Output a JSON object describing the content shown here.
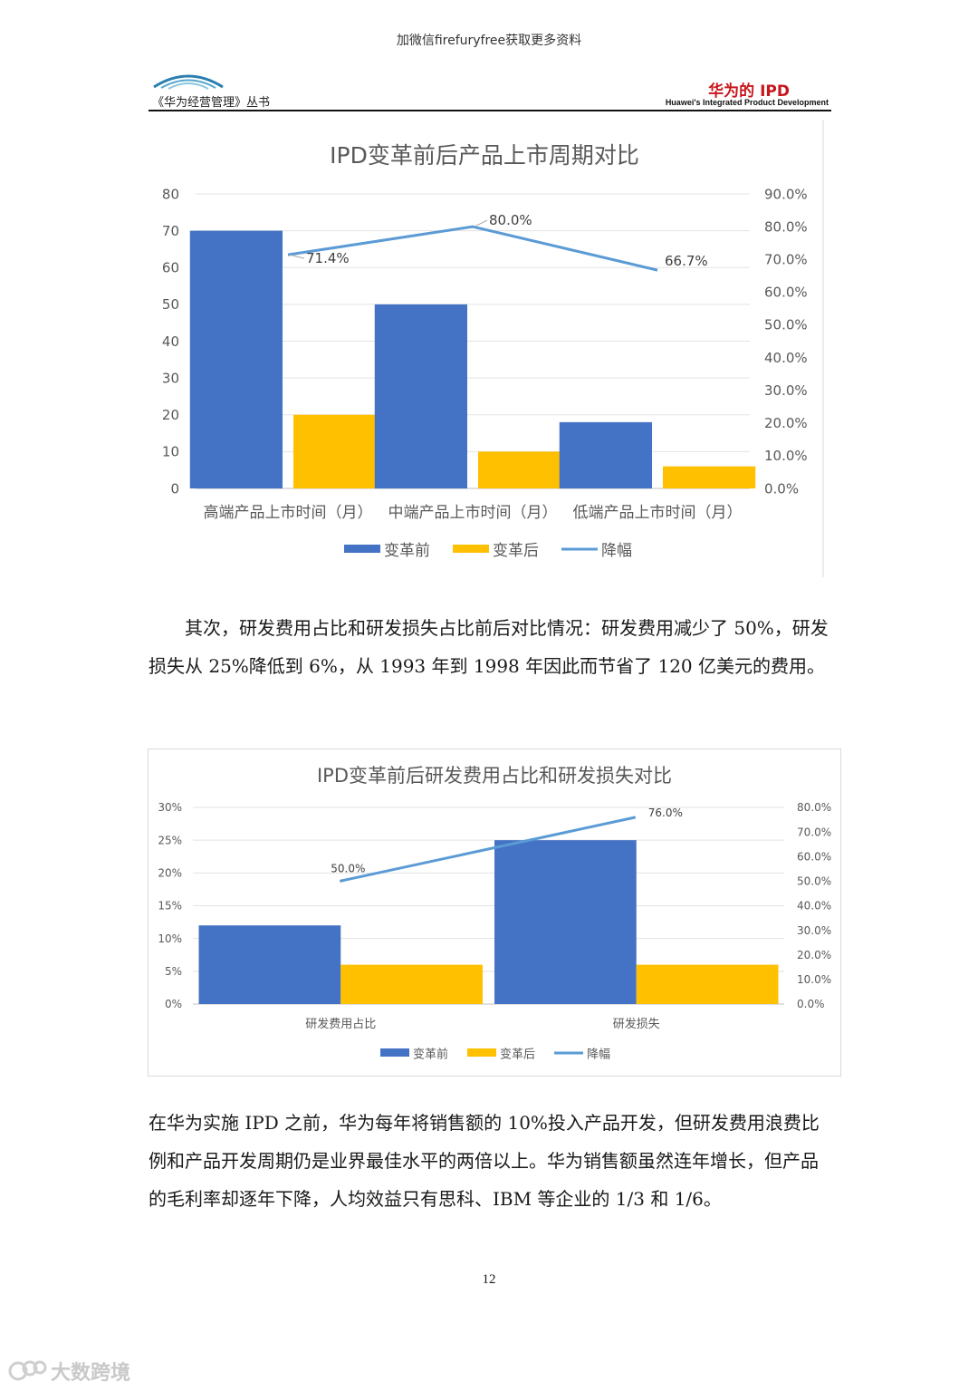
{
  "header": {
    "notice": "加微信firefuryfree获取更多资料",
    "series_title": "《华为经营管理》丛书",
    "brand_title": "华为的 IPD",
    "brand_subtitle": "Huawei's Integrated Product Development"
  },
  "chart_data": [
    {
      "type": "bar",
      "title": "IPD变革前后产品上市周期对比",
      "categories": [
        "高端产品上市时间（月）",
        "中端产品上市时间（月）",
        "低端产品上市时间（月）"
      ],
      "series": [
        {
          "name": "变革前",
          "type": "bar",
          "axis": "left",
          "values": [
            70,
            50,
            18
          ],
          "color": "#4472C4"
        },
        {
          "name": "变革后",
          "type": "bar",
          "axis": "left",
          "values": [
            20,
            10,
            6
          ],
          "color": "#FFC000"
        },
        {
          "name": "降幅",
          "type": "line",
          "axis": "right",
          "values": [
            0.714,
            0.8,
            0.667
          ],
          "labels": [
            "71.4%",
            "80.0%",
            "66.7%"
          ],
          "color": "#5B9BD5"
        }
      ],
      "left_axis": {
        "ylim": [
          0,
          80
        ],
        "ticks": [
          "0",
          "10",
          "20",
          "30",
          "40",
          "50",
          "60",
          "70",
          "80"
        ]
      },
      "right_axis": {
        "ylim": [
          0,
          0.9
        ],
        "ticks": [
          "0.0%",
          "10.0%",
          "20.0%",
          "30.0%",
          "40.0%",
          "50.0%",
          "60.0%",
          "70.0%",
          "80.0%",
          "90.0%"
        ]
      },
      "legend": [
        "变革前",
        "变革后",
        "降幅"
      ],
      "legend_position": "bottom",
      "grid": true
    },
    {
      "type": "bar",
      "title": "IPD变革前后研发费用占比和研发损失对比",
      "categories": [
        "研发费用占比",
        "研发损失"
      ],
      "series": [
        {
          "name": "变革前",
          "type": "bar",
          "axis": "left",
          "values": [
            0.12,
            0.25
          ],
          "color": "#4472C4"
        },
        {
          "name": "变革后",
          "type": "bar",
          "axis": "left",
          "values": [
            0.06,
            0.06
          ],
          "color": "#FFC000"
        },
        {
          "name": "降幅",
          "type": "line",
          "axis": "right",
          "values": [
            0.5,
            0.76
          ],
          "labels": [
            "50.0%",
            "76.0%"
          ],
          "color": "#5B9BD5"
        }
      ],
      "left_axis": {
        "ylim": [
          0,
          0.3
        ],
        "ticks": [
          "0%",
          "5%",
          "10%",
          "15%",
          "20%",
          "25%",
          "30%"
        ]
      },
      "right_axis": {
        "ylim": [
          0,
          0.8
        ],
        "ticks": [
          "0.0%",
          "10.0%",
          "20.0%",
          "30.0%",
          "40.0%",
          "50.0%",
          "60.0%",
          "70.0%",
          "80.0%"
        ]
      },
      "legend": [
        "变革前",
        "变革后",
        "降幅"
      ],
      "legend_position": "bottom",
      "grid": true
    }
  ],
  "body": {
    "paragraph_1": "其次，研发费用占比和研发损失占比前后对比情况：研发费用减少了 50%，研发损失从 25%降低到 6%，从 1993 年到 1998 年因此而节省了 120 亿美元的费用。",
    "paragraph_2": "在华为实施 IPD 之前，华为每年将销售额的 10%投入产品开发，但研发费用浪费比例和产品开发周期仍是业界最佳水平的两倍以上。华为销售额虽然连年增长，但产品的毛利率却逐年下降，人均效益只有思科、IBM 等企业的 1/3 和 1/6。"
  },
  "footer": {
    "page_number": "12",
    "watermark": "大数跨境"
  }
}
